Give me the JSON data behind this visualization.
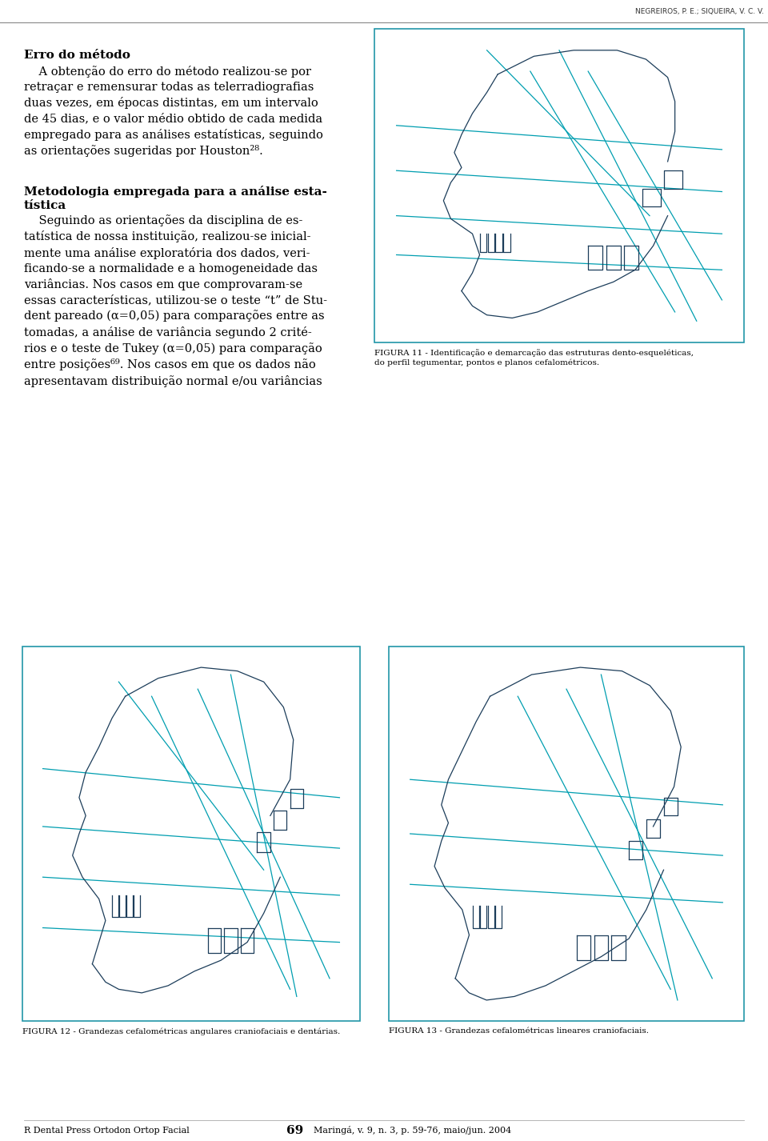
{
  "header_text": "NEGREIROS, P. E.; SIQUEIRA, V. C. V.",
  "footer_journal": "R Dental Press Ortodon Ortop Facial",
  "footer_page": "69",
  "footer_location": "Maringá, v. 9, n. 3, p. 59-76, maio/jun. 2004",
  "section1_title": "Erro do método",
  "section2_title_line1": "Metodologia empregada para a análise esta-",
  "section2_title_line2": "tística",
  "fig11_caption_line1": "FIGURA 11 - Identificação e demarcação das estruturas dento-esqueléticas,",
  "fig11_caption_line2": "do perfil tegumentar, pontos e planos cefalométricos.",
  "fig12_caption": "FIGURA 12 - Grandezas cefalométricas angulares craniofaciais e dentárias.",
  "fig13_caption": "FIGURA 13 - Grandezas cefalométricas lineares craniofaciais.",
  "background_color": "#ffffff",
  "text_color": "#000000",
  "fig_border_color": "#2196a8",
  "cyan_color": "#009eb0",
  "dark_color": "#1c3d5a"
}
